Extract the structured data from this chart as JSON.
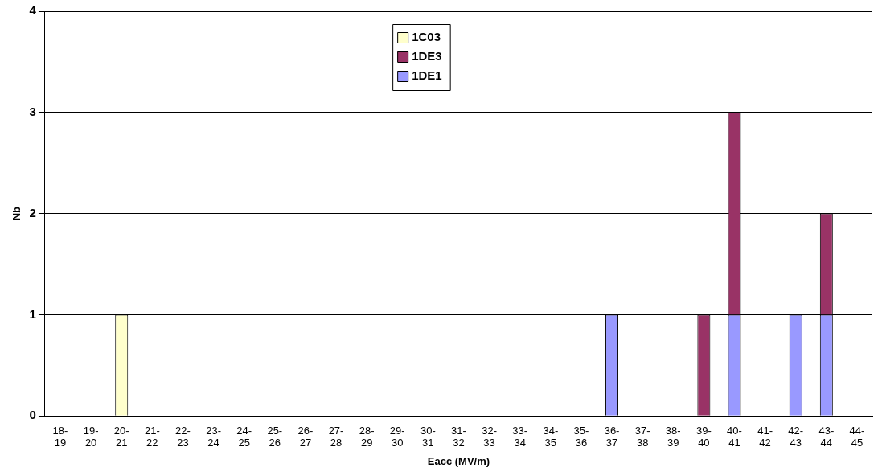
{
  "chart_data": {
    "type": "bar",
    "stacked": true,
    "xlabel": "Eacc (MV/m)",
    "ylabel": "Nb",
    "categories": [
      "18-19",
      "19-20",
      "20-21",
      "21-22",
      "22-23",
      "23-24",
      "24-25",
      "25-26",
      "26-27",
      "27-28",
      "28-29",
      "29-30",
      "30-31",
      "31-32",
      "32-33",
      "33-34",
      "34-35",
      "35-36",
      "36-37",
      "37-38",
      "38-39",
      "39-40",
      "40-41",
      "41-42",
      "42-43",
      "43-44",
      "44-45"
    ],
    "series": [
      {
        "name": "1DE1",
        "color": "#9999ff",
        "values": [
          0,
          0,
          0,
          0,
          0,
          0,
          0,
          0,
          0,
          0,
          0,
          0,
          0,
          0,
          0,
          0,
          0,
          0,
          1,
          0,
          0,
          0,
          1,
          0,
          1,
          1,
          0
        ]
      },
      {
        "name": "1DE3",
        "color": "#993366",
        "values": [
          0,
          0,
          0,
          0,
          0,
          0,
          0,
          0,
          0,
          0,
          0,
          0,
          0,
          0,
          0,
          0,
          0,
          0,
          0,
          0,
          0,
          1,
          2,
          0,
          0,
          1,
          0
        ]
      },
      {
        "name": "1C03",
        "color": "#ffffcc",
        "values": [
          0,
          0,
          1,
          0,
          0,
          0,
          0,
          0,
          0,
          0,
          0,
          0,
          0,
          0,
          0,
          0,
          0,
          0,
          0,
          0,
          0,
          0,
          0,
          0,
          0,
          0,
          0
        ]
      }
    ],
    "ylim": [
      0,
      4
    ],
    "yticks": [
      0,
      1,
      2,
      3,
      4
    ],
    "grid": "y",
    "legend": "top"
  }
}
